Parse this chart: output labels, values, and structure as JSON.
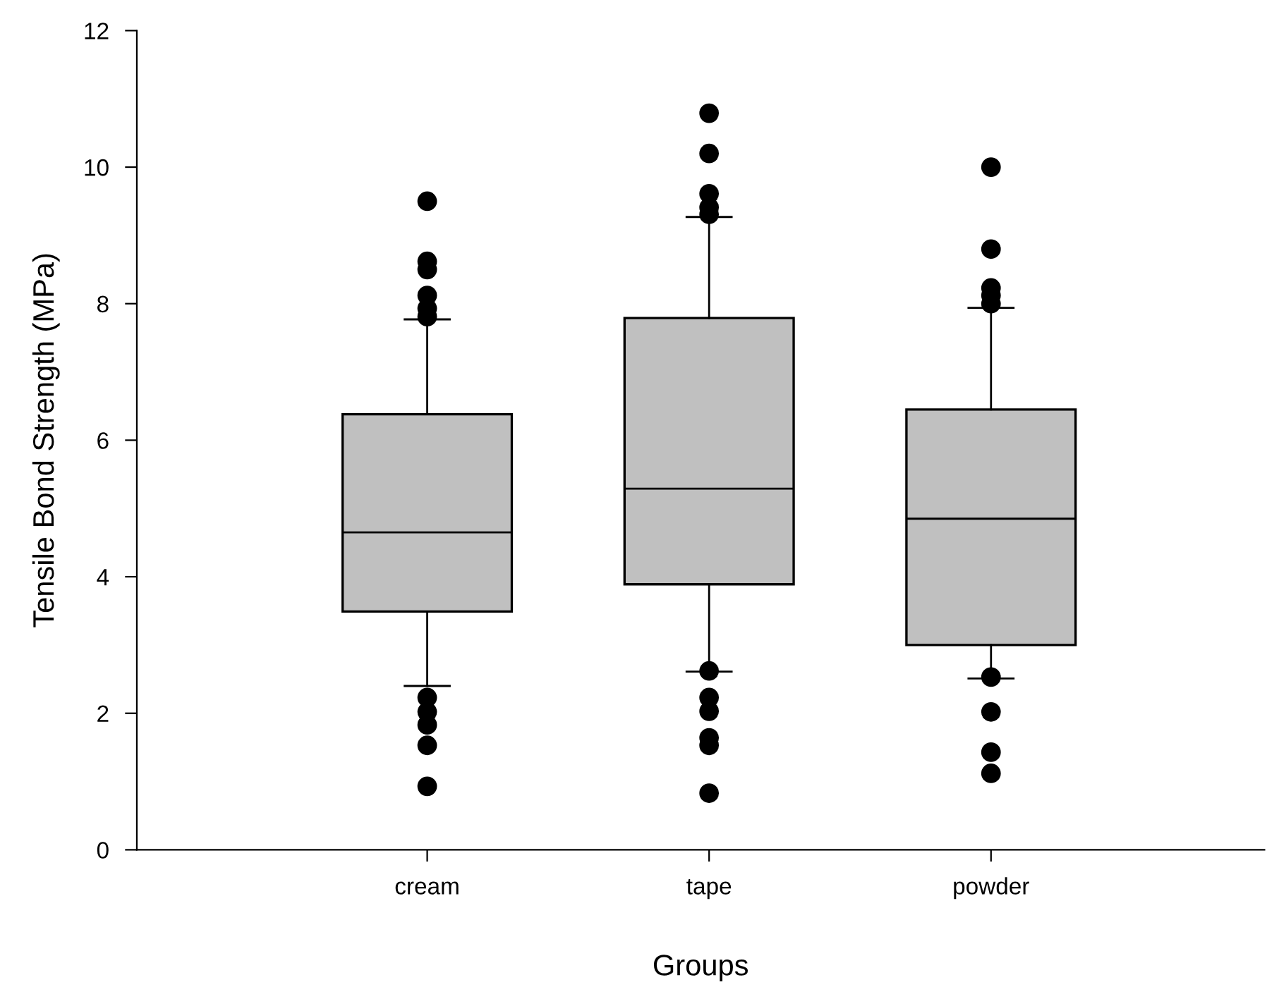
{
  "chart_data": {
    "type": "box",
    "xlabel": "Groups",
    "ylabel": "Tensile Bond Strength (MPa)",
    "categories": [
      "cream",
      "tape",
      "powder"
    ],
    "ylim": [
      0,
      12
    ],
    "yticks": [
      0,
      2,
      4,
      6,
      8,
      10,
      12
    ],
    "grid": false,
    "legend": false,
    "series": [
      {
        "color": "#c0c0c0",
        "boxes": [
          {
            "low": 2.4,
            "q1": 3.49,
            "median": 4.65,
            "q3": 6.38,
            "high": 7.77,
            "outliers": [
              9.5,
              8.62,
              8.5,
              8.12,
              7.93,
              7.81,
              2.23,
              2.02,
              1.83,
              1.53,
              0.93
            ]
          },
          {
            "low": 2.61,
            "q1": 3.89,
            "median": 5.29,
            "q3": 7.79,
            "high": 9.27,
            "outliers": [
              10.79,
              10.2,
              9.61,
              9.41,
              9.31,
              2.62,
              2.23,
              2.03,
              1.64,
              1.53,
              0.83
            ]
          },
          {
            "low": 2.51,
            "q1": 3.0,
            "median": 4.85,
            "q3": 6.45,
            "high": 7.94,
            "outliers": [
              10.0,
              8.8,
              8.23,
              8.12,
              8.0,
              2.53,
              2.02,
              1.43,
              1.12
            ]
          }
        ]
      }
    ]
  }
}
